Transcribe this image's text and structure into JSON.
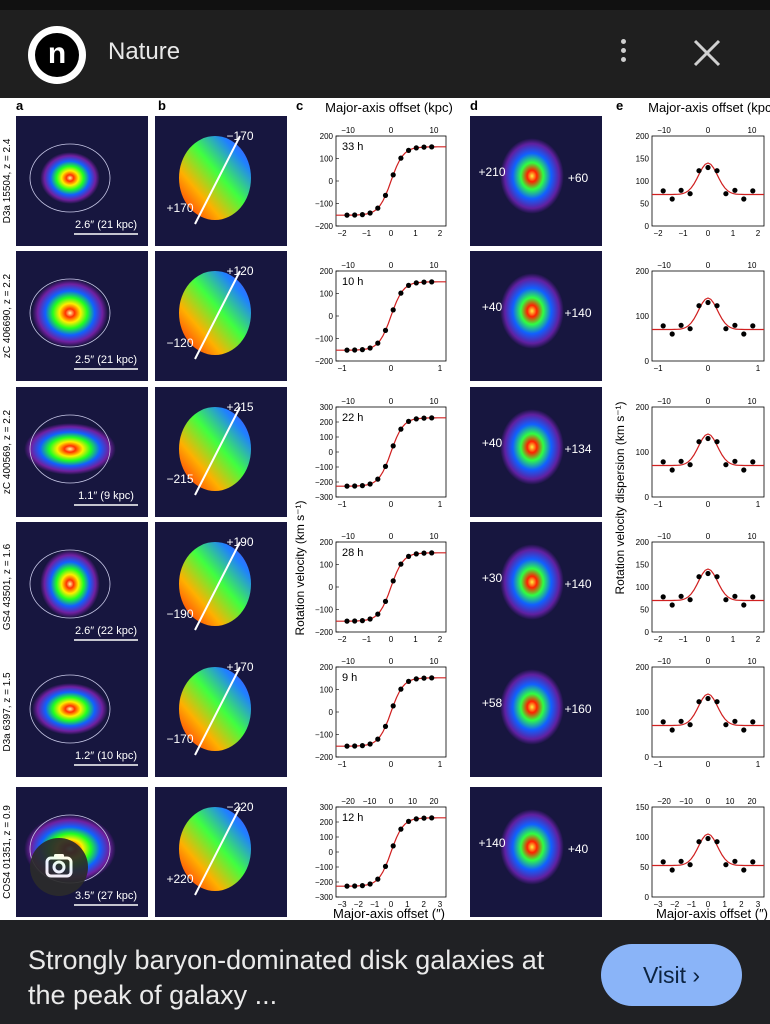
{
  "header": {
    "site_name": "Nature",
    "logo_letter": "n"
  },
  "caption": {
    "title": "Strongly baryon-dominated disk galaxies at the peak of galaxy ..."
  },
  "visit_button": {
    "label": "Visit ›"
  },
  "figure": {
    "panel_letters": [
      "a",
      "b",
      "c",
      "d",
      "e"
    ],
    "top_axis_title_c": "Major-axis offset (kpc)",
    "top_axis_title_e": "Major-axis offset (kpc)",
    "bottom_axis_title_c": "Major-axis offset (″)",
    "bottom_axis_title_e": "Major-axis offset (″)",
    "ylabel_c": "Rotation velocity (km s⁻¹)",
    "ylabel_e": "Rotation velocity dispersion (km s⁻¹)",
    "rows": [
      {
        "galaxy": "D3a 15504, z = 2.4",
        "scale": "2.6″ (21 kpc)",
        "b_labels": [
          "−170",
          "+170"
        ],
        "d_labels": [
          "+210",
          "+60"
        ],
        "hours": "33 h",
        "c_yticks": [
          "200",
          "100",
          "0",
          "−100",
          "−200"
        ],
        "c_top_ticks": [
          "−10",
          "0",
          "10"
        ],
        "c_bottom_ticks": [
          "−2",
          "−1",
          "0",
          "1",
          "2"
        ],
        "e_yticks": [
          "200",
          "150",
          "100",
          "50",
          "0"
        ],
        "e_top_ticks": [
          "−10",
          "0",
          "10"
        ],
        "e_bottom_ticks": [
          "−2",
          "−1",
          "0",
          "1",
          "2"
        ]
      },
      {
        "galaxy": "zC 406690, z = 2.2",
        "scale": "2.5″ (21 kpc)",
        "b_labels": [
          "+120",
          "−120"
        ],
        "d_labels": [
          "+40",
          "+140"
        ],
        "hours": "10 h",
        "c_yticks": [
          "200",
          "100",
          "0",
          "−100",
          "−200"
        ],
        "c_top_ticks": [
          "−10",
          "0",
          "10"
        ],
        "c_bottom_ticks": [
          "−1",
          "0",
          "1"
        ],
        "e_yticks": [
          "200",
          "100",
          "0"
        ],
        "e_top_ticks": [
          "−10",
          "0",
          "10"
        ],
        "e_bottom_ticks": [
          "−1",
          "0",
          "1"
        ]
      },
      {
        "galaxy": "zC 400569, z = 2.2",
        "scale": "1.1″ (9 kpc)",
        "b_labels": [
          "+215",
          "−215"
        ],
        "d_labels": [
          "+40",
          "+134"
        ],
        "hours": "22 h",
        "c_yticks": [
          "300",
          "200",
          "100",
          "0",
          "−100",
          "−200",
          "−300"
        ],
        "c_top_ticks": [
          "−10",
          "0",
          "10"
        ],
        "c_bottom_ticks": [
          "−1",
          "0",
          "1"
        ],
        "e_yticks": [
          "200",
          "100",
          "0"
        ],
        "e_top_ticks": [
          "−10",
          "0",
          "10"
        ],
        "e_bottom_ticks": [
          "−1",
          "0",
          "1"
        ]
      },
      {
        "galaxy": "GS4 43501, z = 1.6",
        "scale": "2.6″ (22 kpc)",
        "b_labels": [
          "+190",
          "−190"
        ],
        "d_labels": [
          "+30",
          "+140"
        ],
        "hours": "28 h",
        "c_yticks": [
          "200",
          "100",
          "0",
          "−100",
          "−200"
        ],
        "c_top_ticks": [
          "−10",
          "0",
          "10"
        ],
        "c_bottom_ticks": [
          "−2",
          "−1",
          "0",
          "1",
          "2"
        ],
        "e_yticks": [
          "200",
          "150",
          "100",
          "50",
          "0"
        ],
        "e_top_ticks": [
          "−10",
          "0",
          "10"
        ],
        "e_bottom_ticks": [
          "−2",
          "−1",
          "0",
          "1",
          "2"
        ]
      },
      {
        "galaxy": "D3a 6397, z = 1.5",
        "scale": "1.2″ (10 kpc)",
        "b_labels": [
          "+170",
          "−170"
        ],
        "d_labels": [
          "+58",
          "+160"
        ],
        "hours": "9 h",
        "c_yticks": [
          "200",
          "100",
          "0",
          "−100",
          "−200"
        ],
        "c_top_ticks": [
          "−10",
          "0",
          "10"
        ],
        "c_bottom_ticks": [
          "−1",
          "0",
          "1"
        ],
        "e_yticks": [
          "200",
          "100",
          "0"
        ],
        "e_top_ticks": [
          "−10",
          "0",
          "10"
        ],
        "e_bottom_ticks": [
          "−1",
          "0",
          "1"
        ]
      },
      {
        "galaxy": "COS4 01351, z = 0.9",
        "scale": "3.5″ (27 kpc)",
        "b_labels": [
          "−220",
          "+220"
        ],
        "d_labels": [
          "+140",
          "+40"
        ],
        "hours": "12 h",
        "c_yticks": [
          "300",
          "200",
          "100",
          "0",
          "−100",
          "−200",
          "−300"
        ],
        "c_top_ticks": [
          "−20",
          "−10",
          "0",
          "10",
          "20"
        ],
        "c_bottom_ticks": [
          "−3",
          "−2",
          "−1",
          "0",
          "1",
          "2",
          "3"
        ],
        "e_yticks": [
          "150",
          "100",
          "50",
          "0"
        ],
        "e_top_ticks": [
          "−20",
          "−10",
          "0",
          "10",
          "20"
        ],
        "e_bottom_ticks": [
          "−3",
          "−2",
          "−1",
          "0",
          "1",
          "2",
          "3"
        ]
      }
    ]
  },
  "icons": {
    "close": "close-icon",
    "menu": "more-vert-icon",
    "lens": "google-lens-icon"
  }
}
